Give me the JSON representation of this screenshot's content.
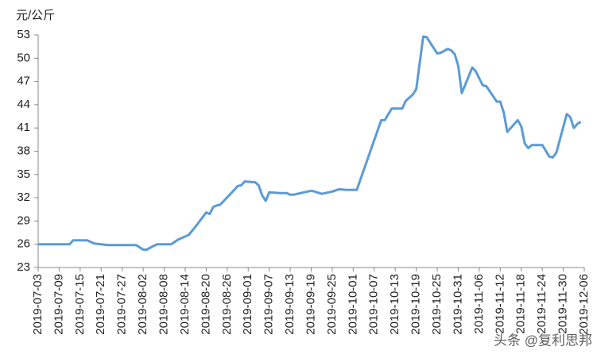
{
  "chart_data": {
    "type": "line",
    "y_label": "元/公斤",
    "watermark": "头条 @复利思邦",
    "color": "#5b9bd5",
    "xlim": [
      "2019-07-03",
      "2019-12-06"
    ],
    "xticks": [
      "2019-07-03",
      "2019-07-09",
      "2019-07-15",
      "2019-07-21",
      "2019-07-27",
      "2019-08-02",
      "2019-08-08",
      "2019-08-14",
      "2019-08-20",
      "2019-08-26",
      "2019-09-01",
      "2019-09-07",
      "2019-09-13",
      "2019-09-19",
      "2019-09-25",
      "2019-10-01",
      "2019-10-07",
      "2019-10-13",
      "2019-10-19",
      "2019-10-25",
      "2019-10-31",
      "2019-11-06",
      "2019-11-12",
      "2019-11-18",
      "2019-11-24",
      "2019-11-30",
      "2019-12-06"
    ],
    "ylim": [
      23,
      53
    ],
    "yticks": [
      23,
      26,
      29,
      32,
      35,
      38,
      41,
      44,
      47,
      50,
      53
    ],
    "x": [
      "2019-07-03",
      "2019-07-12",
      "2019-07-13",
      "2019-07-17",
      "2019-07-19",
      "2019-07-21",
      "2019-07-23",
      "2019-07-31",
      "2019-08-01",
      "2019-08-02",
      "2019-08-03",
      "2019-08-05",
      "2019-08-06",
      "2019-08-10",
      "2019-08-12",
      "2019-08-14",
      "2019-08-15",
      "2019-08-17",
      "2019-08-19",
      "2019-08-20",
      "2019-08-21",
      "2019-08-22",
      "2019-08-23",
      "2019-08-24",
      "2019-08-28",
      "2019-08-29",
      "2019-08-30",
      "2019-08-31",
      "2019-09-03",
      "2019-09-04",
      "2019-09-05",
      "2019-09-06",
      "2019-09-07",
      "2019-09-10",
      "2019-09-12",
      "2019-09-13",
      "2019-09-14",
      "2019-09-19",
      "2019-09-20",
      "2019-09-22",
      "2019-09-25",
      "2019-09-27",
      "2019-09-29",
      "2019-10-01",
      "2019-10-02",
      "2019-10-09",
      "2019-10-10",
      "2019-10-12",
      "2019-10-15",
      "2019-10-16",
      "2019-10-18",
      "2019-10-19",
      "2019-10-21",
      "2019-10-22",
      "2019-10-25",
      "2019-10-26",
      "2019-10-28",
      "2019-10-29",
      "2019-10-30",
      "2019-10-31",
      "2019-11-01",
      "2019-11-04",
      "2019-11-05",
      "2019-11-07",
      "2019-11-08",
      "2019-11-11",
      "2019-11-12",
      "2019-11-13",
      "2019-11-14",
      "2019-11-17",
      "2019-11-18",
      "2019-11-19",
      "2019-11-20",
      "2019-11-21",
      "2019-11-24",
      "2019-11-26",
      "2019-11-27",
      "2019-11-28",
      "2019-12-01",
      "2019-12-02",
      "2019-12-03",
      "2019-12-04",
      "2019-12-05"
    ],
    "values": [
      26.0,
      26.0,
      26.5,
      26.5,
      26.1,
      26.0,
      25.9,
      25.9,
      25.6,
      25.3,
      25.3,
      25.8,
      26.0,
      26.0,
      26.6,
      27.0,
      27.2,
      28.3,
      29.5,
      30.1,
      29.9,
      30.8,
      31.0,
      31.1,
      33.0,
      33.5,
      33.6,
      34.1,
      34.0,
      33.6,
      32.3,
      31.6,
      32.7,
      32.6,
      32.6,
      32.4,
      32.4,
      32.9,
      32.8,
      32.5,
      32.8,
      33.1,
      33.0,
      33.0,
      33.0,
      42.0,
      42.0,
      43.5,
      43.5,
      44.5,
      45.3,
      46.0,
      52.8,
      52.7,
      50.6,
      50.7,
      51.2,
      51.0,
      50.5,
      49.0,
      45.5,
      48.8,
      48.3,
      46.5,
      46.4,
      44.4,
      44.4,
      43.0,
      40.5,
      42.0,
      41.2,
      39.0,
      38.4,
      38.8,
      38.8,
      37.3,
      37.2,
      37.8,
      42.8,
      42.4,
      41.0,
      41.5,
      41.8
    ]
  }
}
